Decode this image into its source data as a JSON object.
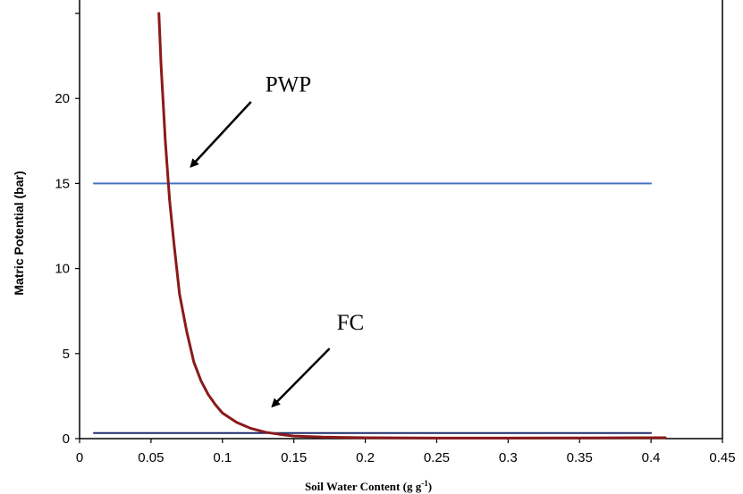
{
  "chart_data": {
    "type": "line",
    "xlabel": "Soil Water Content (g g",
    "xlabel_sup": "-1",
    "xlabel_end": ")",
    "ylabel": "Matric Potential (bar)",
    "xlim": [
      0,
      0.45
    ],
    "ylim": [
      0,
      25
    ],
    "x_ticks": [
      0,
      0.05,
      0.1,
      0.15,
      0.2,
      0.25,
      0.3,
      0.35,
      0.4,
      0.45
    ],
    "x_tick_labels": [
      "0",
      "0.05",
      "0.1",
      "0.15",
      "0.2",
      "0.25",
      "0.3",
      "0.35",
      "0.4",
      "0.45"
    ],
    "y_ticks": [
      0,
      5,
      10,
      15,
      20,
      25
    ],
    "y_tick_labels": [
      "0",
      "5",
      "10",
      "15",
      "20",
      ""
    ],
    "grid": false,
    "legend": "none",
    "series": [
      {
        "color": "#8b1a1a",
        "x": [
          0.0555,
          0.057,
          0.06,
          0.063,
          0.066,
          0.07,
          0.075,
          0.08,
          0.085,
          0.09,
          0.095,
          0.1,
          0.11,
          0.12,
          0.13,
          0.14,
          0.15,
          0.17,
          0.2,
          0.25,
          0.3,
          0.35,
          0.4,
          0.41
        ],
        "y": [
          25,
          22,
          17.5,
          14,
          11.5,
          8.5,
          6.3,
          4.5,
          3.4,
          2.6,
          2.0,
          1.5,
          0.95,
          0.6,
          0.38,
          0.25,
          0.15,
          0.09,
          0.05,
          0.03,
          0.03,
          0.04,
          0.05,
          0.05
        ]
      },
      {
        "color": "#4472c4",
        "x": [
          0.01,
          0.4
        ],
        "y": [
          15,
          15
        ]
      },
      {
        "color": "#1f2d6b",
        "x": [
          0.01,
          0.4
        ],
        "y": [
          0.33,
          0.33
        ]
      }
    ],
    "annotations": [
      {
        "text": "PWP",
        "x": 0.13,
        "y": 20.4,
        "arrow_from": [
          0.12,
          19.8
        ],
        "arrow_to": [
          0.078,
          16.0
        ]
      },
      {
        "text": "FC",
        "x": 0.18,
        "y": 6.4,
        "arrow_from": [
          0.175,
          5.3
        ],
        "arrow_to": [
          0.135,
          1.9
        ]
      }
    ]
  }
}
